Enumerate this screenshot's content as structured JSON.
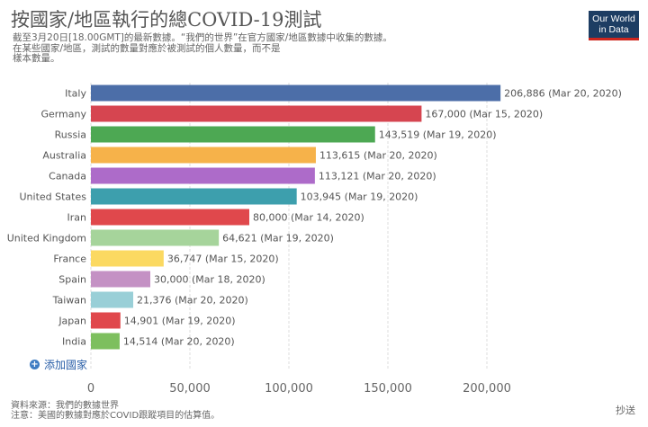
{
  "header": {
    "title": "按國家/地區執行的總COVID-19測試",
    "subtitle_lines": [
      "截至3月20日[18.00GMT]的最新數據。“我們的世界”在官方國家/地區數據中收集的數據。",
      "在某些國家/地區，測試的數量對應於被測試的個人數量，而不是",
      "樣本數量。"
    ]
  },
  "logo": {
    "line1": "Our World",
    "line2": "in Data"
  },
  "controls": {
    "add_country": "添加國家",
    "share": "抄送"
  },
  "footer": {
    "source": "資料來源：我們的數據世界",
    "note": "注意：美國的數據對應於COVID跟蹤項目的估算值。"
  },
  "colors": {
    "bar_label": "#555555",
    "grid": "#dddddd"
  },
  "chart_data": {
    "type": "bar",
    "orientation": "horizontal",
    "categories": [
      "Italy",
      "Germany",
      "Russia",
      "Australia",
      "Canada",
      "United States",
      "Iran",
      "United Kingdom",
      "France",
      "Spain",
      "Taiwan",
      "Japan",
      "India"
    ],
    "values": [
      206886,
      167000,
      143519,
      113615,
      113121,
      103945,
      80000,
      64621,
      36747,
      30000,
      21376,
      14901,
      14514
    ],
    "value_labels": [
      "206,886 (Mar 20, 2020)",
      "167,000 (Mar 15, 2020)",
      "143,519 (Mar 19, 2020)",
      "113,615 (Mar 20, 2020)",
      "113,121 (Mar 20, 2020)",
      "103,945 (Mar 19, 2020)",
      "80,000 (Mar 14, 2020)",
      "64,621 (Mar 19, 2020)",
      "36,747 (Mar 15, 2020)",
      "30,000 (Mar 18, 2020)",
      "21,376 (Mar 20, 2020)",
      "14,901 (Mar 19, 2020)",
      "14,514 (Mar 20, 2020)"
    ],
    "bar_colors": [
      "#4c6ea8",
      "#d64550",
      "#4da853",
      "#f6b24a",
      "#ad6bc9",
      "#3d9fad",
      "#e0484c",
      "#a6d49b",
      "#fbd961",
      "#c491c4",
      "#99cfd7",
      "#e0484c",
      "#7dbf5e"
    ],
    "xlim": [
      0,
      220000
    ],
    "xticks": [
      0,
      50000,
      100000,
      150000,
      200000
    ],
    "xtick_labels": [
      "0",
      "50,000",
      "100,000",
      "150,000",
      "200,000"
    ],
    "grid": true
  }
}
